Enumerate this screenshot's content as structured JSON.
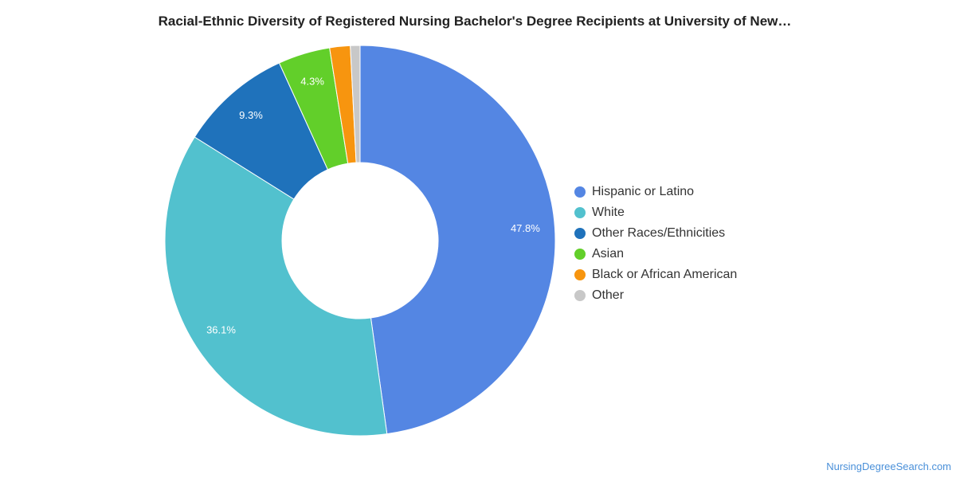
{
  "chart_data": {
    "type": "pie",
    "title": "Racial-Ethnic Diversity of Registered Nursing Bachelor's Degree Recipients at University of New…",
    "legend_position": "right",
    "donut": true,
    "series": [
      {
        "name": "Hispanic or Latino",
        "value": 47.8,
        "label": "47.8%",
        "color": "#5486e3"
      },
      {
        "name": "White",
        "value": 36.1,
        "label": "36.1%",
        "color": "#52c1ce"
      },
      {
        "name": "Other Races/Ethnicities",
        "value": 9.3,
        "label": "9.3%",
        "color": "#1f72bb"
      },
      {
        "name": "Asian",
        "value": 4.3,
        "label": "4.3%",
        "color": "#62cf2a"
      },
      {
        "name": "Black or African American",
        "value": 1.7,
        "label": "",
        "color": "#f7950f"
      },
      {
        "name": "Other",
        "value": 0.8,
        "label": "",
        "color": "#c8c8c8"
      }
    ]
  },
  "footer": {
    "source": "NursingDegreeSearch.com"
  }
}
